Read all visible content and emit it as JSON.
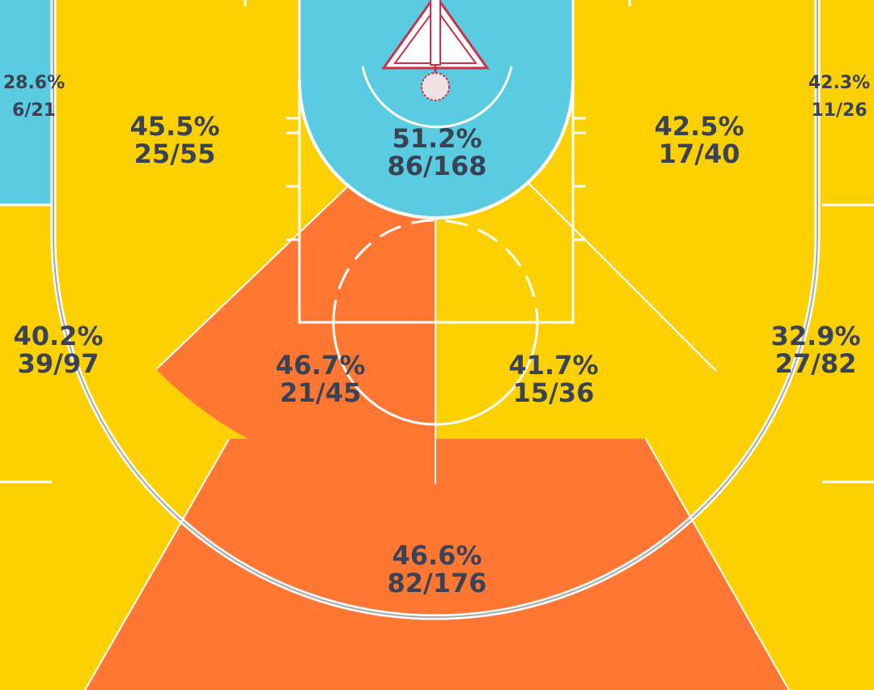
{
  "colors": {
    "hot": "#FF7733",
    "average": "#FDD000",
    "cold": "#5ACBE0",
    "lines": "#FFFFFF",
    "label": "#3A4356",
    "hoop": "#C7334B"
  },
  "zones": {
    "left_corner_three": {
      "pct": "28.6%",
      "fraction": "6/21",
      "tier": "cold"
    },
    "right_corner_three": {
      "pct": "42.3%",
      "fraction": "11/26",
      "tier": "average"
    },
    "left_baseline_mid": {
      "pct": "45.5%",
      "fraction": "25/55",
      "tier": "average"
    },
    "restricted_area": {
      "pct": "51.2%",
      "fraction": "86/168",
      "tier": "cold"
    },
    "right_baseline_mid": {
      "pct": "42.5%",
      "fraction": "17/40",
      "tier": "average"
    },
    "left_wing_three": {
      "pct": "40.2%",
      "fraction": "39/97",
      "tier": "average"
    },
    "left_elbow_mid": {
      "pct": "46.7%",
      "fraction": "21/45",
      "tier": "hot"
    },
    "right_elbow_mid": {
      "pct": "41.7%",
      "fraction": "15/36",
      "tier": "average"
    },
    "right_wing_three": {
      "pct": "32.9%",
      "fraction": "27/82",
      "tier": "average"
    },
    "top_of_key_three": {
      "pct": "46.6%",
      "fraction": "82/176",
      "tier": "hot"
    }
  }
}
